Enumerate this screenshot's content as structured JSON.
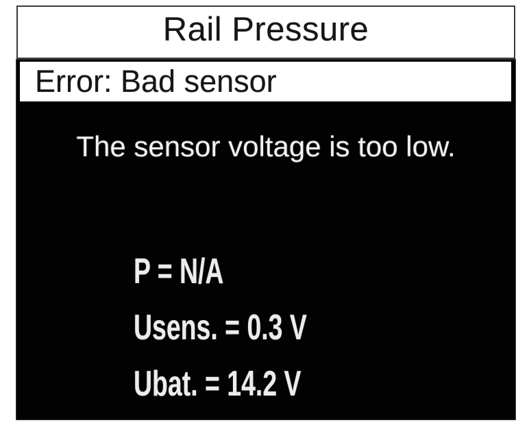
{
  "screen": {
    "title": "Rail Pressure",
    "error_banner": "Error: Bad sensor",
    "message": "The sensor voltage is too low.",
    "readings": [
      {
        "label": "P",
        "value": "N/A",
        "text": "P = N/A"
      },
      {
        "label": "Usens.",
        "value": "0.3 V",
        "text": "Usens. = 0.3 V"
      },
      {
        "label": "Ubat.",
        "value": "14.2 V",
        "text": "Ubat. = 14.2 V"
      }
    ],
    "colors": {
      "panel_bg": "#020202",
      "bar_bg": "#ffffff",
      "text_dark": "#161616",
      "text_light": "#f2f2f2"
    }
  }
}
